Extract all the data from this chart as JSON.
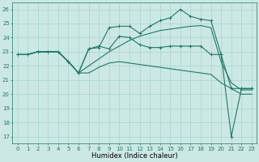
{
  "xlabel": "Humidex (Indice chaleur)",
  "xlim": [
    -0.5,
    23.5
  ],
  "ylim": [
    16.5,
    26.5
  ],
  "yticks": [
    17,
    18,
    19,
    20,
    21,
    22,
    23,
    24,
    25,
    26
  ],
  "xticks": [
    0,
    1,
    2,
    3,
    4,
    5,
    6,
    7,
    8,
    9,
    10,
    11,
    12,
    13,
    14,
    15,
    16,
    17,
    18,
    19,
    20,
    21,
    22,
    23
  ],
  "background_color": "#cce8e4",
  "grid_color": "#a8d4cf",
  "line_color": "#1e7868",
  "line1_x": [
    0,
    1,
    2,
    3,
    4,
    5,
    6,
    7,
    8,
    9,
    10,
    11,
    12,
    13,
    14,
    15,
    16,
    17,
    18,
    19,
    20,
    21,
    22,
    23
  ],
  "line1_y": [
    22.8,
    22.8,
    23.0,
    23.0,
    23.0,
    22.3,
    21.5,
    23.2,
    23.3,
    24.7,
    24.8,
    24.8,
    24.3,
    24.8,
    25.2,
    25.4,
    26.0,
    25.5,
    25.3,
    25.2,
    22.8,
    20.4,
    20.4,
    20.4
  ],
  "line2_x": [
    0,
    1,
    2,
    3,
    4,
    5,
    6,
    7,
    8,
    9,
    10,
    11,
    12,
    13,
    14,
    15,
    16,
    17,
    18,
    19,
    20,
    21,
    22,
    23
  ],
  "line2_y": [
    22.8,
    22.8,
    23.0,
    23.0,
    23.0,
    22.3,
    21.5,
    23.2,
    23.4,
    23.2,
    24.1,
    24.0,
    23.5,
    23.3,
    23.3,
    23.4,
    23.4,
    23.4,
    23.4,
    22.8,
    22.8,
    17.0,
    20.4,
    20.4
  ],
  "line3_x": [
    0,
    1,
    2,
    3,
    4,
    5,
    6,
    7,
    8,
    9,
    10,
    11,
    12,
    13,
    14,
    15,
    16,
    17,
    18,
    19,
    20,
    21,
    22,
    23
  ],
  "line3_y": [
    22.8,
    22.8,
    23.0,
    23.0,
    23.0,
    22.3,
    21.5,
    22.0,
    22.5,
    23.0,
    23.4,
    23.8,
    24.1,
    24.3,
    24.5,
    24.6,
    24.7,
    24.8,
    24.85,
    24.7,
    22.3,
    20.8,
    20.3,
    20.3
  ],
  "line4_x": [
    0,
    1,
    2,
    3,
    4,
    5,
    6,
    7,
    8,
    9,
    10,
    11,
    12,
    13,
    14,
    15,
    16,
    17,
    18,
    19,
    20,
    21,
    22,
    23
  ],
  "line4_y": [
    22.8,
    22.8,
    23.0,
    23.0,
    23.0,
    22.3,
    21.5,
    21.5,
    21.9,
    22.2,
    22.3,
    22.2,
    22.1,
    22.0,
    21.9,
    21.8,
    21.7,
    21.6,
    21.5,
    21.4,
    20.8,
    20.4,
    20.0,
    20.0
  ],
  "marker": "+",
  "markersize": 3,
  "linewidth": 0.8,
  "tick_fontsize": 5,
  "xlabel_fontsize": 6
}
